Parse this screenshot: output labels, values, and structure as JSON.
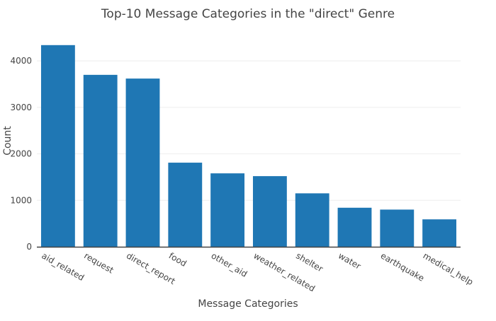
{
  "chart_data": {
    "type": "bar",
    "title": "Top-10 Message Categories in the \"direct\" Genre",
    "xlabel": "Message Categories",
    "ylabel": "Count",
    "categories": [
      "aid_related",
      "request",
      "direct_report",
      "food",
      "other_aid",
      "weather_related",
      "shelter",
      "water",
      "earthquake",
      "medical_help"
    ],
    "values": [
      4340,
      3700,
      3620,
      1810,
      1580,
      1520,
      1150,
      840,
      800,
      590
    ],
    "ylim": [
      0,
      4550
    ],
    "yticks": [
      0,
      1000,
      2000,
      3000,
      4000
    ],
    "grid": true,
    "bar_color": "#1f77b4"
  }
}
